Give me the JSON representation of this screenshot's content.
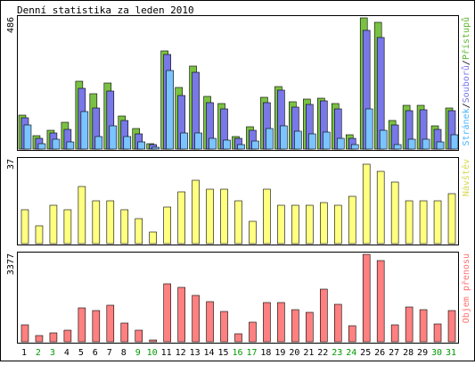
{
  "title": "Denní statistika za leden 2010",
  "colors": {
    "background": "#ffffff",
    "frame": "#000000",
    "weekday_label": "#000000",
    "weekend_label": "#009900",
    "hits": "#7ac143",
    "files": "#7878e8",
    "pages": "#7ac4ff",
    "visits": "#ffff80",
    "kbytes": "#ff8080",
    "legend_hits": "#5cb82e",
    "legend_files": "#7878e8",
    "legend_pages": "#48b4ff",
    "legend_visits": "#d8d84c",
    "legend_kbytes": "#ff7070",
    "legend_separator": "#000000"
  },
  "chart_data": [
    {
      "type": "bar",
      "title": "Denní statistika za leden 2010",
      "categories": [
        "1",
        "2",
        "3",
        "4",
        "5",
        "6",
        "7",
        "8",
        "9",
        "10",
        "11",
        "12",
        "13",
        "14",
        "15",
        "16",
        "17",
        "18",
        "19",
        "20",
        "21",
        "22",
        "23",
        "24",
        "25",
        "26",
        "27",
        "28",
        "29",
        "30",
        "31"
      ],
      "weekend": [
        false,
        true,
        true,
        false,
        false,
        false,
        false,
        false,
        true,
        true,
        false,
        false,
        false,
        false,
        false,
        true,
        true,
        false,
        false,
        false,
        false,
        false,
        true,
        true,
        false,
        false,
        false,
        false,
        false,
        true,
        true
      ],
      "ymax_label": "486",
      "ylim": [
        0,
        486
      ],
      "legend": [
        {
          "label": "Přístupů",
          "color_key": "legend_hits"
        },
        {
          "label": "Souborů",
          "color_key": "legend_files"
        },
        {
          "label": "Stránek",
          "color_key": "legend_pages"
        }
      ],
      "series": [
        {
          "name": "Přístupů",
          "color_key": "hits",
          "values": [
            126,
            50,
            70,
            98,
            252,
            204,
            245,
            123,
            75,
            20,
            364,
            228,
            306,
            195,
            170,
            47,
            81,
            191,
            231,
            175,
            185,
            190,
            170,
            54,
            486,
            471,
            105,
            162,
            162,
            85,
            152
          ]
        },
        {
          "name": "Souborů",
          "color_key": "files",
          "values": [
            116,
            41,
            58,
            73,
            226,
            152,
            216,
            105,
            57,
            17,
            349,
            198,
            285,
            173,
            150,
            41,
            70,
            172,
            217,
            154,
            166,
            178,
            150,
            41,
            440,
            412,
            88,
            141,
            146,
            72,
            141
          ]
        },
        {
          "name": "Stránek",
          "color_key": "pages",
          "values": [
            90,
            21,
            36,
            27,
            139,
            47,
            85,
            47,
            28,
            6,
            290,
            59,
            59,
            40,
            33,
            17,
            29,
            75,
            85,
            67,
            55,
            62,
            41,
            17,
            148,
            68,
            15,
            37,
            36,
            25,
            54
          ]
        }
      ]
    },
    {
      "type": "bar",
      "categories": [
        "1",
        "2",
        "3",
        "4",
        "5",
        "6",
        "7",
        "8",
        "9",
        "10",
        "11",
        "12",
        "13",
        "14",
        "15",
        "16",
        "17",
        "18",
        "19",
        "20",
        "21",
        "22",
        "23",
        "24",
        "25",
        "26",
        "27",
        "28",
        "29",
        "30",
        "31"
      ],
      "ymax_label": "37",
      "ylim": [
        0,
        37
      ],
      "legend": [
        {
          "label": "Návštěv",
          "color_key": "legend_visits"
        }
      ],
      "series": [
        {
          "name": "Návštěv",
          "color_key": "visits",
          "values": [
            15,
            8,
            17,
            15,
            25,
            19,
            19,
            15,
            11,
            5,
            16,
            23,
            28,
            24,
            24,
            19,
            10,
            24,
            17,
            17,
            17,
            18,
            17,
            21,
            35,
            32,
            27,
            19,
            19,
            19,
            22
          ]
        }
      ]
    },
    {
      "type": "bar",
      "categories": [
        "1",
        "2",
        "3",
        "4",
        "5",
        "6",
        "7",
        "8",
        "9",
        "10",
        "11",
        "12",
        "13",
        "14",
        "15",
        "16",
        "17",
        "18",
        "19",
        "20",
        "21",
        "22",
        "23",
        "24",
        "25",
        "26",
        "27",
        "28",
        "29",
        "30",
        "31"
      ],
      "ymax_label": "3377",
      "ylim": [
        0,
        3377
      ],
      "legend": [
        {
          "label": "Objem přenosu",
          "color_key": "legend_kbytes"
        }
      ],
      "series": [
        {
          "name": "Objem přenosu",
          "color_key": "kbytes",
          "values": [
            659,
            244,
            348,
            444,
            1307,
            1198,
            1423,
            716,
            452,
            64,
            2234,
            2111,
            1794,
            1544,
            1164,
            298,
            773,
            1509,
            1511,
            1227,
            1152,
            2044,
            1454,
            605,
            3377,
            3144,
            665,
            1354,
            1248,
            673,
            1207
          ]
        }
      ]
    }
  ]
}
